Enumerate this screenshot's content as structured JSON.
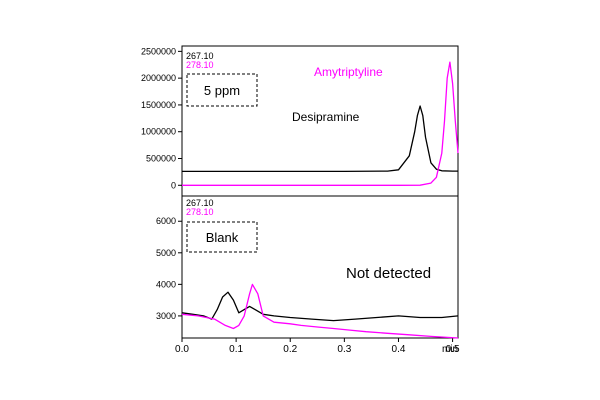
{
  "chart_data": [
    {
      "type": "line",
      "title": "",
      "xlabel": "min",
      "ylabel": "",
      "xlim": [
        0.0,
        0.51
      ],
      "ylim": [
        -200000,
        2600000
      ],
      "yticks": [
        0,
        500000,
        1000000,
        1500000,
        2000000,
        2500000
      ],
      "yticklabels": [
        "0",
        "500000",
        "1000000",
        "1500000",
        "2000000",
        "2500000"
      ],
      "grid": false,
      "legend": {
        "position": "top-left",
        "entries": [
          "267.10",
          "278.10"
        ]
      },
      "boxed_label": "5 ppm",
      "series": [
        {
          "name": "267.10",
          "color": "#000000",
          "annotation": "Desipramine",
          "x": [
            0.0,
            0.3,
            0.38,
            0.4,
            0.42,
            0.43,
            0.435,
            0.44,
            0.445,
            0.45,
            0.46,
            0.47,
            0.48,
            0.5,
            0.51
          ],
          "y": [
            260000,
            260000,
            265000,
            290000,
            550000,
            1000000,
            1300000,
            1480000,
            1300000,
            900000,
            420000,
            300000,
            270000,
            265000,
            265000
          ]
        },
        {
          "name": "278.10",
          "color": "#ff00ff",
          "annotation": "Amytriptyline",
          "x": [
            0.0,
            0.3,
            0.4,
            0.44,
            0.46,
            0.47,
            0.48,
            0.485,
            0.49,
            0.495,
            0.5,
            0.505,
            0.51
          ],
          "y": [
            0,
            0,
            0,
            2000,
            40000,
            150000,
            600000,
            1200000,
            2000000,
            2300000,
            1900000,
            1200000,
            600000
          ]
        }
      ]
    },
    {
      "type": "line",
      "title": "",
      "xlabel": "min",
      "ylabel": "",
      "xlim": [
        0.0,
        0.51
      ],
      "xticks": [
        0.0,
        0.1,
        0.2,
        0.3,
        0.4,
        0.5
      ],
      "xticklabels": [
        "0.0",
        "0.1",
        "0.2",
        "0.3",
        "0.4",
        "0.5"
      ],
      "ylim": [
        2300,
        6800
      ],
      "yticks": [
        3000,
        4000,
        5000,
        6000
      ],
      "yticklabels": [
        "3000",
        "4000",
        "5000",
        "6000"
      ],
      "grid": false,
      "legend": {
        "position": "top-left",
        "entries": [
          "267.10",
          "278.10"
        ]
      },
      "boxed_label": "Blank",
      "annotation": "Not detected",
      "series": [
        {
          "name": "267.10",
          "color": "#000000",
          "x": [
            0.0,
            0.02,
            0.04,
            0.055,
            0.065,
            0.075,
            0.085,
            0.095,
            0.105,
            0.115,
            0.125,
            0.135,
            0.15,
            0.17,
            0.2,
            0.24,
            0.28,
            0.32,
            0.36,
            0.4,
            0.44,
            0.48,
            0.51
          ],
          "y": [
            3100,
            3050,
            3000,
            2900,
            3200,
            3600,
            3750,
            3500,
            3100,
            3200,
            3300,
            3200,
            3050,
            3000,
            2950,
            2900,
            2850,
            2900,
            2950,
            3000,
            2950,
            2950,
            3000
          ]
        },
        {
          "name": "278.10",
          "color": "#ff00ff",
          "x": [
            0.0,
            0.03,
            0.06,
            0.08,
            0.095,
            0.105,
            0.115,
            0.125,
            0.13,
            0.14,
            0.15,
            0.17,
            0.2,
            0.22,
            0.25,
            0.28,
            0.31,
            0.34,
            0.38,
            0.42,
            0.46,
            0.51
          ],
          "y": [
            3050,
            3000,
            2900,
            2700,
            2600,
            2700,
            3000,
            3700,
            4000,
            3700,
            3000,
            2800,
            2750,
            2700,
            2650,
            2600,
            2550,
            2500,
            2450,
            2400,
            2350,
            2300
          ]
        }
      ]
    }
  ]
}
